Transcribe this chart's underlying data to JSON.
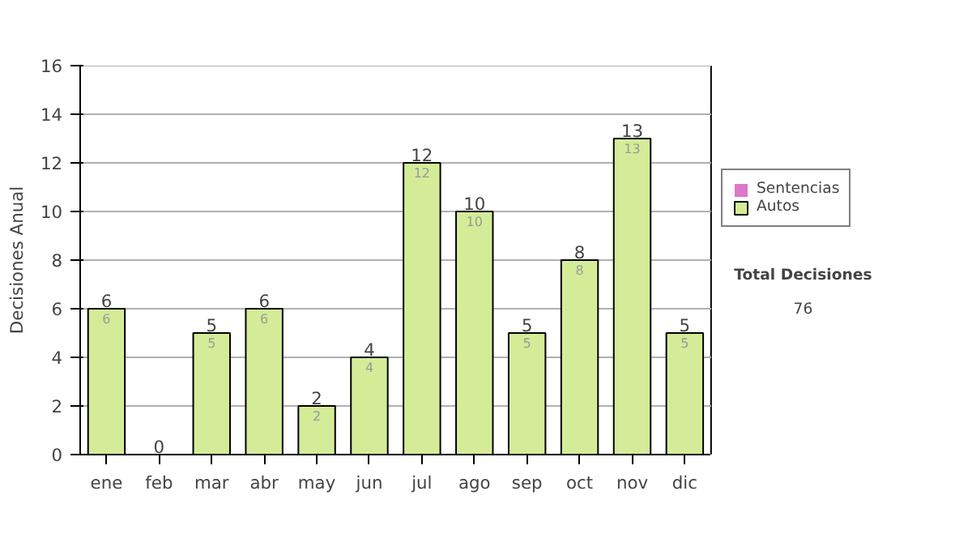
{
  "chart_data": {
    "type": "bar",
    "stacked": true,
    "ylabel": "Decisiones Anual",
    "categories": [
      "ene",
      "feb",
      "mar",
      "abr",
      "may",
      "jun",
      "jul",
      "ago",
      "sep",
      "oct",
      "nov",
      "dic"
    ],
    "series": [
      {
        "name": "Sentencias",
        "color": "#dd77cc",
        "values": [
          0,
          0,
          0,
          0,
          0,
          0,
          0,
          0,
          0,
          0,
          0,
          0
        ],
        "value_labels": [
          null,
          null,
          null,
          null,
          null,
          null,
          null,
          null,
          null,
          null,
          null,
          null
        ]
      },
      {
        "name": "Autos",
        "color": "#d4ec98",
        "values": [
          6,
          0,
          5,
          6,
          2,
          4,
          12,
          10,
          5,
          8,
          13,
          5
        ],
        "value_labels": [
          "6",
          null,
          "5",
          "6",
          "2",
          "4",
          "12",
          "10",
          "5",
          "8",
          "13",
          "5"
        ]
      }
    ],
    "totals": [
      "6",
      "0",
      "5",
      "6",
      "2",
      "4",
      "12",
      "10",
      "5",
      "8",
      "13",
      "5"
    ],
    "ylim": [
      0,
      16
    ],
    "yticks": [
      0,
      2,
      4,
      6,
      8,
      10,
      12,
      14,
      16
    ],
    "grid": "y",
    "legend": "right",
    "annotations": [
      "Total Decisiones",
      "76"
    ]
  }
}
